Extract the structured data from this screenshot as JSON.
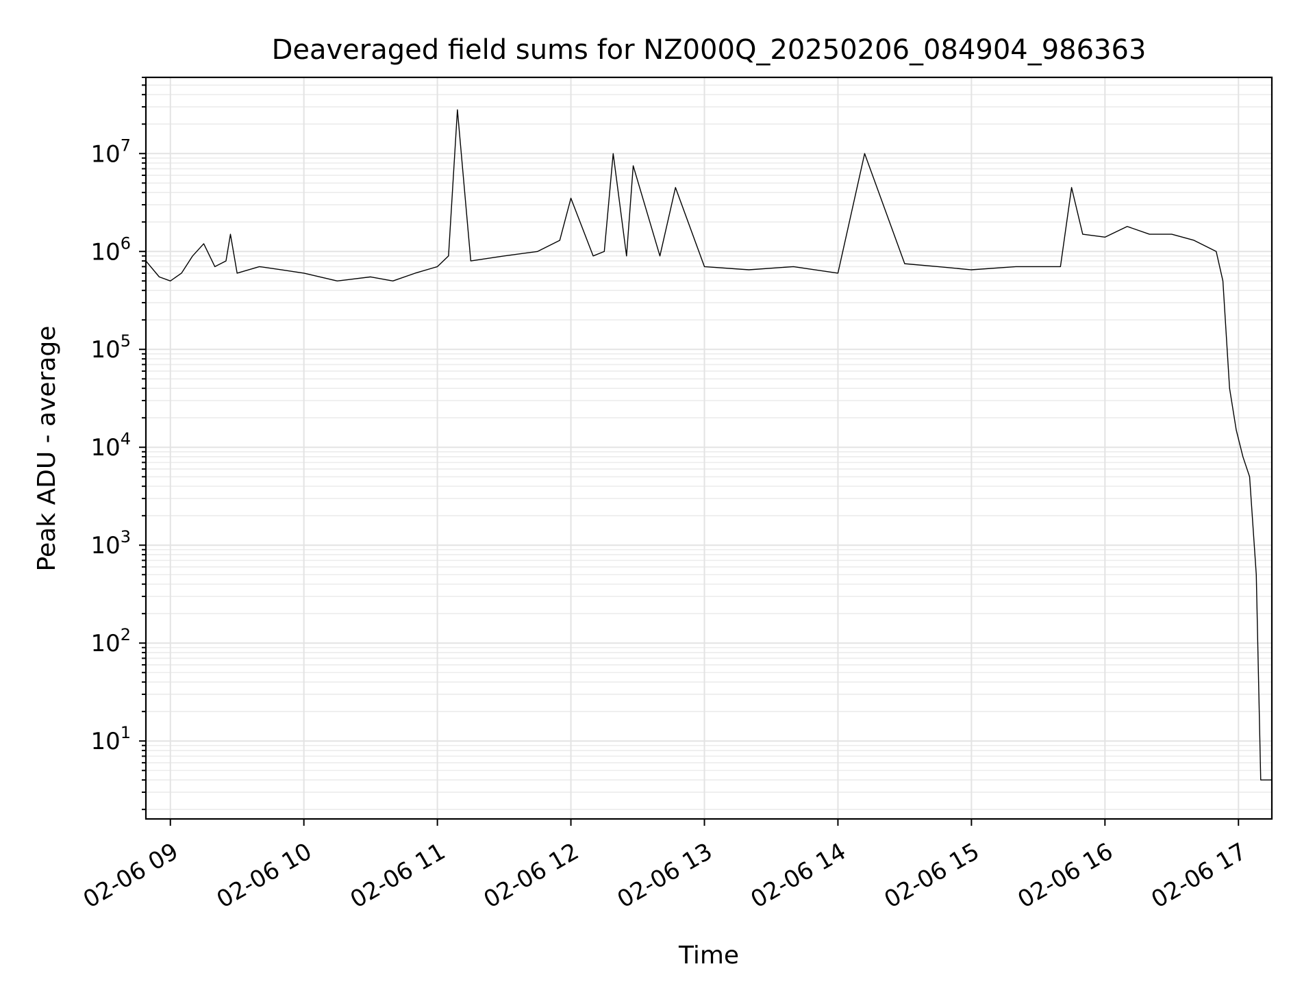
{
  "chart_data": {
    "type": "line",
    "title": "Deaveraged field sums for NZ000Q_20250206_084904_986363",
    "xlabel": "Time",
    "ylabel": "Peak ADU - average",
    "yscale": "log",
    "ylim": [
      1.6,
      60000000
    ],
    "xlim": [
      "02-06 08:49",
      "02-06 17:15"
    ],
    "grid": true,
    "line_color": "#000000",
    "x_ticks": [
      "02-06 09",
      "02-06 10",
      "02-06 11",
      "02-06 12",
      "02-06 13",
      "02-06 14",
      "02-06 15",
      "02-06 16",
      "02-06 17"
    ],
    "y_ticks": [
      {
        "base": "10",
        "exp": "1",
        "value": 10
      },
      {
        "base": "10",
        "exp": "2",
        "value": 100
      },
      {
        "base": "10",
        "exp": "3",
        "value": 1000
      },
      {
        "base": "10",
        "exp": "4",
        "value": 10000
      },
      {
        "base": "10",
        "exp": "5",
        "value": 100000
      },
      {
        "base": "10",
        "exp": "6",
        "value": 1000000
      },
      {
        "base": "10",
        "exp": "7",
        "value": 10000000
      }
    ],
    "series": [
      {
        "x": [
          "02-06 08:49",
          "02-06 08:55",
          "02-06 09:00",
          "02-06 09:05",
          "02-06 09:10",
          "02-06 09:15",
          "02-06 09:20",
          "02-06 09:25",
          "02-06 09:27",
          "02-06 09:30",
          "02-06 09:40",
          "02-06 09:50",
          "02-06 10:00",
          "02-06 10:15",
          "02-06 10:30",
          "02-06 10:40",
          "02-06 10:50",
          "02-06 11:00",
          "02-06 11:05",
          "02-06 11:09",
          "02-06 11:15",
          "02-06 11:30",
          "02-06 11:45",
          "02-06 11:55",
          "02-06 12:00",
          "02-06 12:10",
          "02-06 12:15",
          "02-06 12:19",
          "02-06 12:25",
          "02-06 12:28",
          "02-06 12:40",
          "02-06 12:47",
          "02-06 13:00",
          "02-06 13:20",
          "02-06 13:40",
          "02-06 14:00",
          "02-06 14:12",
          "02-06 14:30",
          "02-06 14:45",
          "02-06 15:00",
          "02-06 15:20",
          "02-06 15:40",
          "02-06 15:45",
          "02-06 15:50",
          "02-06 16:00",
          "02-06 16:10",
          "02-06 16:20",
          "02-06 16:30",
          "02-06 16:40",
          "02-06 16:50",
          "02-06 16:53",
          "02-06 16:56",
          "02-06 16:59",
          "02-06 17:02",
          "02-06 17:05",
          "02-06 17:08",
          "02-06 17:10",
          "02-06 17:12",
          "02-06 17:15"
        ],
        "y": [
          800000,
          550000,
          500000,
          600000,
          900000,
          1200000,
          700000,
          800000,
          1500000,
          600000,
          700000,
          650000,
          600000,
          500000,
          550000,
          500000,
          600000,
          700000,
          900000,
          28000000,
          800000,
          900000,
          1000000,
          1300000,
          3500000,
          900000,
          1000000,
          10000000,
          900000,
          7500000,
          900000,
          4500000,
          700000,
          650000,
          700000,
          600000,
          10000000,
          750000,
          700000,
          650000,
          700000,
          700000,
          4500000,
          1500000,
          1400000,
          1800000,
          1500000,
          1500000,
          1300000,
          1000000,
          500000,
          40000,
          15000,
          8000,
          5000,
          500,
          4,
          4,
          4
        ]
      }
    ]
  }
}
